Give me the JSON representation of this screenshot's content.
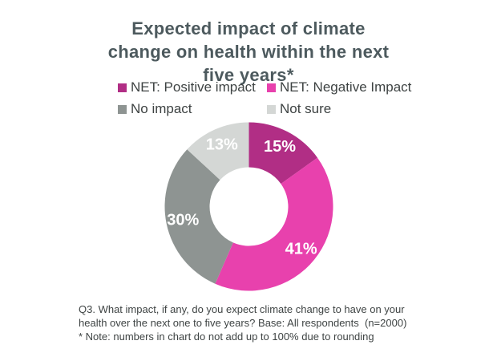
{
  "title": {
    "text": "Expected impact of climate change on health within the next five years*",
    "lines": [
      "Expected impact of climate",
      "change on health within the next",
      "five years*"
    ],
    "color": "#4d5a5e"
  },
  "chart_data": {
    "type": "pie",
    "subtype": "donut",
    "title": "Expected impact of climate change on health within the next five years*",
    "slices": [
      {
        "label": "NET: Positive impact",
        "value": 15,
        "data_label": "15%",
        "color": "#b12e85"
      },
      {
        "label": "NET: Negative Impact",
        "value": 41,
        "data_label": "41%",
        "color": "#e841ad"
      },
      {
        "label": "No impact",
        "value": 30,
        "data_label": "30%",
        "color": "#8e9492"
      },
      {
        "label": "Not sure",
        "value": 13,
        "data_label": "13%",
        "color": "#d4d7d5"
      }
    ],
    "start_angle_deg": 0,
    "direction": "clockwise",
    "donut_hole_ratio": 0.47,
    "outer_radius_px": 105,
    "inner_radius_px": 49,
    "data_label_color": "#ffffff",
    "data_label_radius_px": 84,
    "legend_position": "top"
  },
  "footnote": {
    "lines": [
      "Q3. What impact, if any, do you expect climate change to have on your",
      "health over the next one to five years? Base: All respondents  (n=2000)",
      "* Note: numbers in chart do not add up to 100% due to rounding"
    ]
  }
}
